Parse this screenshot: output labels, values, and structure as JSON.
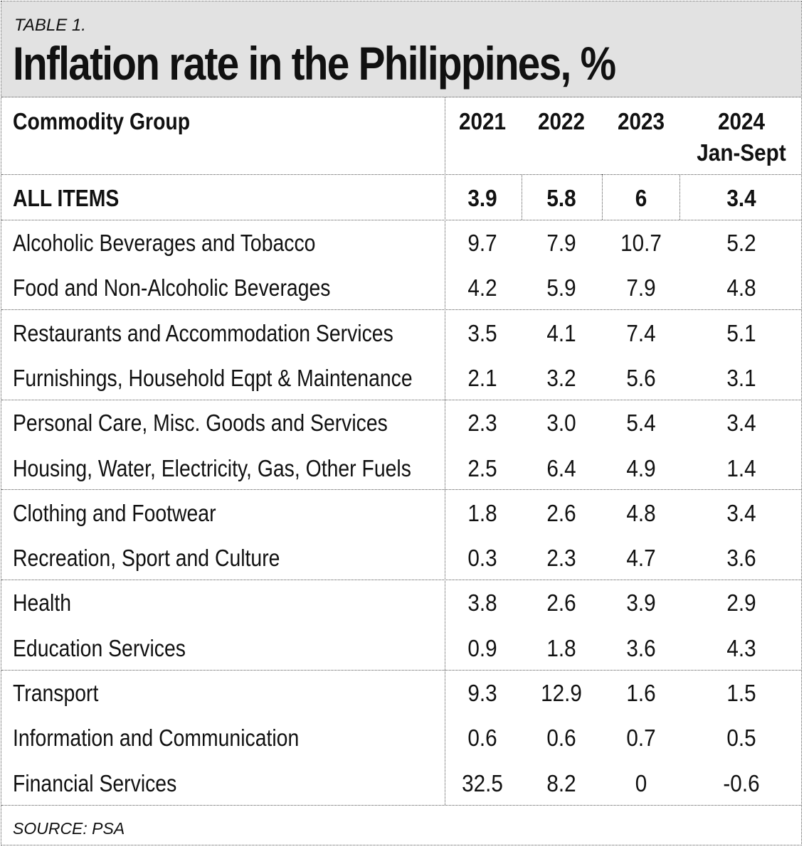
{
  "header": {
    "table_label": "TABLE 1.",
    "title": "Inflation rate in the Philippines, %"
  },
  "columns": {
    "group_header": "Commodity Group",
    "years": [
      "2021",
      "2022",
      "2023",
      "2024"
    ],
    "last_sub": "Jan-Sept"
  },
  "source": "SOURCE: PSA",
  "chart_data": {
    "type": "table",
    "title": "Inflation rate in the Philippines, %",
    "columns": [
      "Commodity Group",
      "2021",
      "2022",
      "2023",
      "2024 Jan-Sept"
    ],
    "total": {
      "label": "ALL ITEMS",
      "values": [
        "3.9",
        "5.8",
        "6",
        "3.4"
      ]
    },
    "rows": [
      {
        "label": "Alcoholic Beverages and Tobacco",
        "values": [
          "9.7",
          "7.9",
          "10.7",
          "5.2"
        ]
      },
      {
        "label": "Food and Non-Alcoholic Beverages",
        "values": [
          "4.2",
          "5.9",
          "7.9",
          "4.8"
        ]
      },
      {
        "label": "Restaurants and Accommodation Services",
        "values": [
          "3.5",
          "4.1",
          "7.4",
          "5.1"
        ]
      },
      {
        "label": "Furnishings, Household Eqpt & Maintenance",
        "values": [
          "2.1",
          "3.2",
          "5.6",
          "3.1"
        ]
      },
      {
        "label": "Personal Care, Misc. Goods and Services",
        "values": [
          "2.3",
          "3.0",
          "5.4",
          "3.4"
        ]
      },
      {
        "label": "Housing, Water, Electricity, Gas, Other Fuels",
        "values": [
          "2.5",
          "6.4",
          "4.9",
          "1.4"
        ]
      },
      {
        "label": "Clothing and Footwear",
        "values": [
          "1.8",
          "2.6",
          "4.8",
          "3.4"
        ]
      },
      {
        "label": "Recreation, Sport and Culture",
        "values": [
          "0.3",
          "2.3",
          "4.7",
          "3.6"
        ]
      },
      {
        "label": "Health",
        "values": [
          "3.8",
          "2.6",
          "3.9",
          "2.9"
        ]
      },
      {
        "label": "Education Services",
        "values": [
          "0.9",
          "1.8",
          "3.6",
          "4.3"
        ]
      },
      {
        "label": "Transport",
        "values": [
          "9.3",
          "12.9",
          "1.6",
          "1.5"
        ]
      },
      {
        "label": "Information and Communication",
        "values": [
          "0.6",
          "0.6",
          "0.7",
          "0.5"
        ]
      },
      {
        "label": "Financial Services",
        "values": [
          "32.5",
          "8.2",
          "0",
          "-0.6"
        ]
      }
    ]
  }
}
